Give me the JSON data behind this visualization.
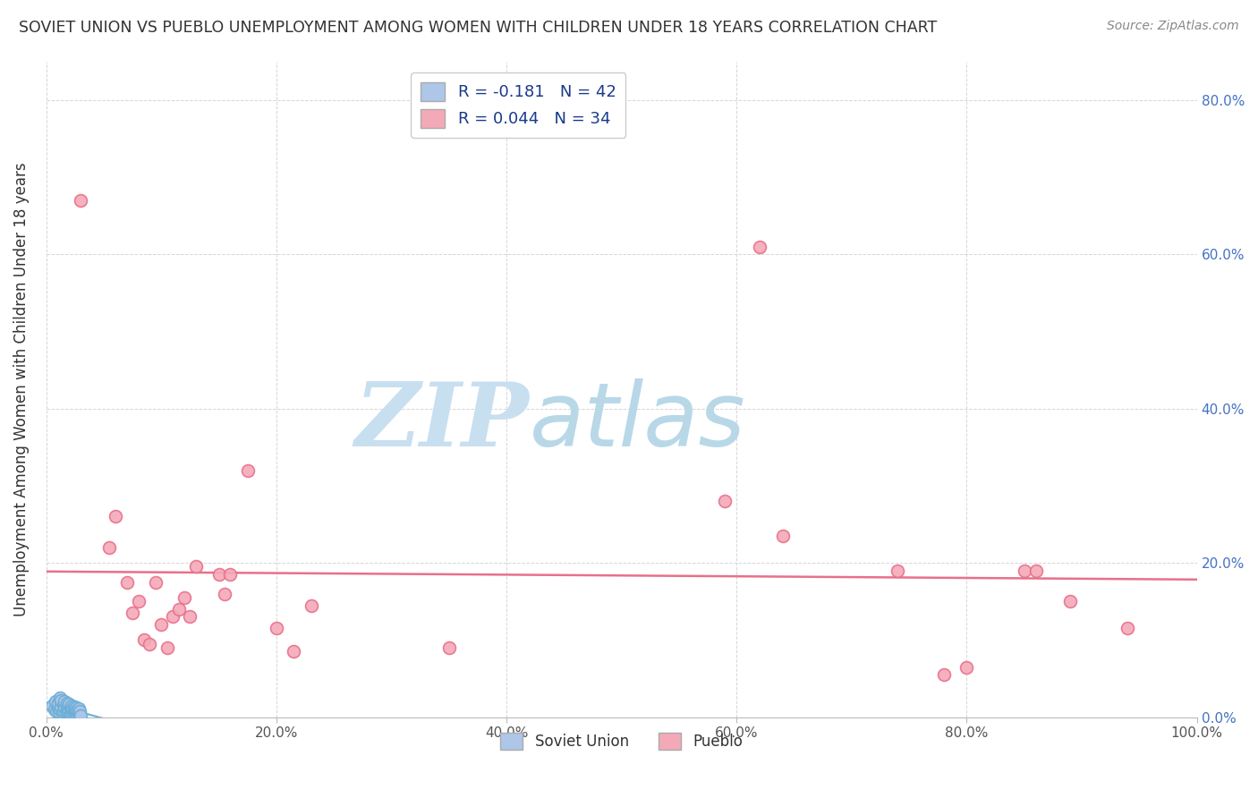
{
  "title": "SOVIET UNION VS PUEBLO UNEMPLOYMENT AMONG WOMEN WITH CHILDREN UNDER 18 YEARS CORRELATION CHART",
  "source": "Source: ZipAtlas.com",
  "ylabel": "Unemployment Among Women with Children Under 18 years",
  "xlim": [
    0,
    1.0
  ],
  "ylim": [
    0,
    0.85
  ],
  "soviet_union_x": [
    0.005,
    0.007,
    0.008,
    0.009,
    0.01,
    0.01,
    0.011,
    0.012,
    0.012,
    0.013,
    0.013,
    0.014,
    0.015,
    0.015,
    0.016,
    0.016,
    0.017,
    0.018,
    0.018,
    0.019,
    0.019,
    0.02,
    0.02,
    0.021,
    0.021,
    0.022,
    0.022,
    0.023,
    0.023,
    0.024,
    0.024,
    0.025,
    0.025,
    0.026,
    0.026,
    0.027,
    0.027,
    0.028,
    0.028,
    0.029,
    0.029,
    0.03
  ],
  "soviet_union_y": [
    0.015,
    0.01,
    0.02,
    0.008,
    0.012,
    0.018,
    0.006,
    0.025,
    0.01,
    0.014,
    0.022,
    0.005,
    0.008,
    0.016,
    0.012,
    0.02,
    0.007,
    0.01,
    0.018,
    0.006,
    0.014,
    0.009,
    0.017,
    0.004,
    0.012,
    0.008,
    0.015,
    0.005,
    0.011,
    0.007,
    0.013,
    0.003,
    0.01,
    0.006,
    0.012,
    0.004,
    0.009,
    0.005,
    0.011,
    0.003,
    0.008,
    0.002
  ],
  "pueblo_x": [
    0.03,
    0.055,
    0.06,
    0.07,
    0.075,
    0.08,
    0.085,
    0.09,
    0.095,
    0.1,
    0.105,
    0.11,
    0.115,
    0.12,
    0.125,
    0.13,
    0.15,
    0.155,
    0.16,
    0.175,
    0.2,
    0.215,
    0.23,
    0.35,
    0.59,
    0.62,
    0.64,
    0.74,
    0.78,
    0.8,
    0.85,
    0.86,
    0.89,
    0.94
  ],
  "pueblo_y": [
    0.67,
    0.22,
    0.26,
    0.175,
    0.135,
    0.15,
    0.1,
    0.095,
    0.175,
    0.12,
    0.09,
    0.13,
    0.14,
    0.155,
    0.13,
    0.195,
    0.185,
    0.16,
    0.185,
    0.32,
    0.115,
    0.085,
    0.145,
    0.09,
    0.28,
    0.61,
    0.235,
    0.19,
    0.055,
    0.065,
    0.19,
    0.19,
    0.15,
    0.115
  ],
  "soviet_R": -0.181,
  "soviet_N": 42,
  "pueblo_R": 0.044,
  "pueblo_N": 34,
  "soviet_color": "#aec6e8",
  "soviet_edge": "#6baed6",
  "pueblo_color": "#f4a9b8",
  "pueblo_edge": "#e8708a",
  "trend_soviet_color": "#6baed6",
  "trend_pueblo_color": "#e8708a",
  "grid_color": "#cccccc",
  "title_color": "#333333",
  "source_color": "#888888",
  "axis_label_color": "#333333",
  "tick_color_right": "#4472c4",
  "tick_color_bottom": "#555555",
  "background_color": "#ffffff",
  "watermark_zip": "ZIP",
  "watermark_atlas": "atlas",
  "watermark_color_zip": "#c8dff0",
  "watermark_color_atlas": "#b8d8e8"
}
